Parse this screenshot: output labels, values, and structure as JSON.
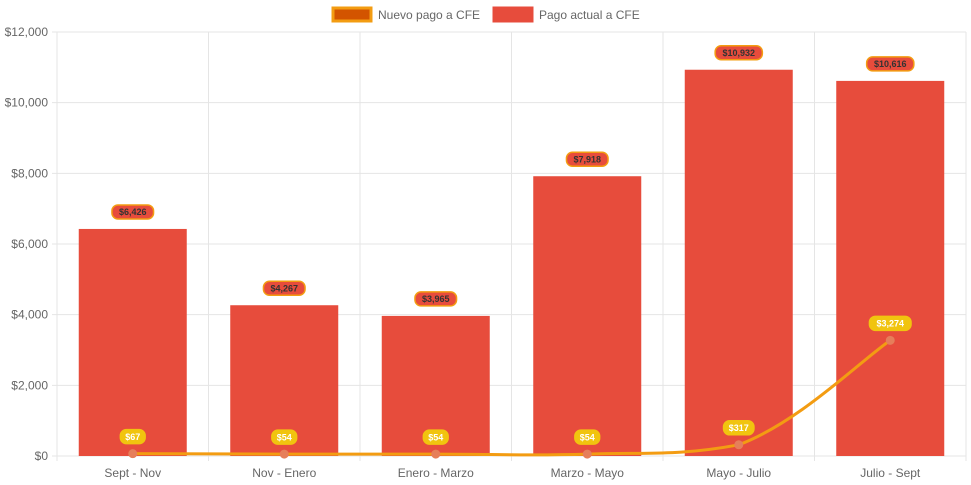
{
  "chart_data": {
    "type": "bar",
    "categories": [
      "Sept - Nov",
      "Nov - Enero",
      "Enero - Marzo",
      "Marzo - Mayo",
      "Mayo - Julio",
      "Julio - Sept"
    ],
    "ylim": [
      0,
      12000
    ],
    "yticks": [
      0,
      2000,
      4000,
      6000,
      8000,
      10000,
      12000
    ],
    "ytick_labels": [
      "$0",
      "$2,000",
      "$4,000",
      "$6,000",
      "$8,000",
      "$10,000",
      "$12,000"
    ],
    "grid": true,
    "legend_position": "top-center",
    "series": [
      {
        "name": "Nuevo pago a CFE",
        "type": "line",
        "color": "#f39c12",
        "legend_fill": "#d35400",
        "label_fill": "#f1c40f",
        "label_text_color": "#ffffff",
        "point_color": "#e67e5a",
        "values": [
          67,
          54,
          54,
          54,
          317,
          3274
        ],
        "labels": [
          "$67",
          "$54",
          "$54",
          "$54",
          "$317",
          "$3,274"
        ]
      },
      {
        "name": "Pago actual a CFE",
        "type": "bar",
        "color": "#e74c3c",
        "label_fill": "#e74c3c",
        "label_border": "#f39c12",
        "label_text_color": "#333333",
        "values": [
          6426,
          4267,
          3965,
          7918,
          10932,
          10616
        ],
        "labels": [
          "$6,426",
          "$4,267",
          "$3,965",
          "$7,918",
          "$10,932",
          "$10,616"
        ]
      }
    ]
  }
}
